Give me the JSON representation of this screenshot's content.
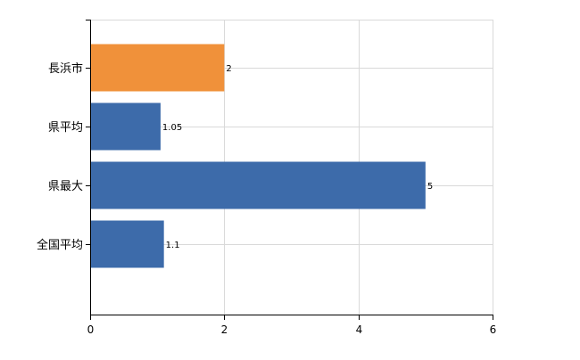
{
  "chart_data": {
    "type": "bar",
    "orientation": "horizontal",
    "categories": [
      "長浜市",
      "県平均",
      "県最大",
      "全国平均"
    ],
    "values": [
      2,
      1.05,
      5,
      1.1
    ],
    "data_labels": [
      "2",
      "1.05",
      "5",
      "1.1"
    ],
    "bar_colors": [
      "#F0913A",
      "#3D6BAA",
      "#3D6BAA",
      "#3D6BAA"
    ],
    "title": "",
    "xlabel": "",
    "ylabel": "",
    "xlim": [
      0,
      6
    ],
    "x_ticks": [
      0,
      2,
      4,
      6
    ],
    "x_tick_labels": [
      "0",
      "2",
      "4",
      "6"
    ],
    "grid": true,
    "legend": false
  }
}
